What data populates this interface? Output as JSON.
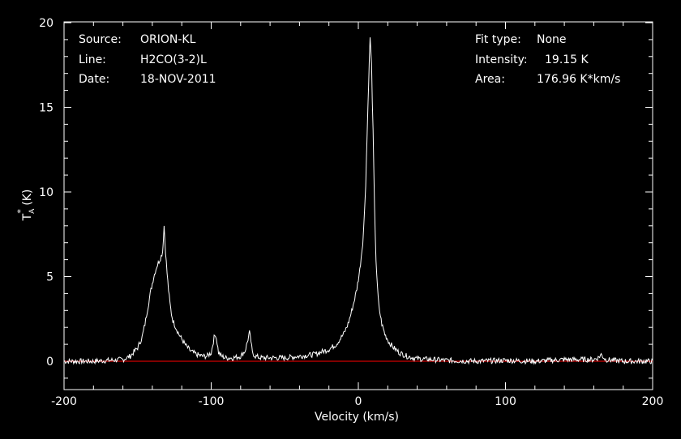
{
  "info": {
    "source_label": "Source:",
    "source_value": "ORION-KL",
    "line_label": "Line:",
    "line_value": "H2CO(3-2)L",
    "date_label": "Date:",
    "date_value": "18-NOV-2011",
    "fit_type_label": "Fit type:",
    "fit_type_value": "None",
    "intensity_label": "Intensity:",
    "intensity_value": "19.15 K",
    "area_label": "Area:",
    "area_value": "176.96 K*km/s"
  },
  "chart_data": {
    "type": "line",
    "xlabel": "Velocity (km/s)",
    "ylabel_main": "T",
    "ylabel_sub": "A",
    "ylabel_sup": "*",
    "ylabel_rest": " (K)",
    "xlim": [
      -200,
      200
    ],
    "ylim": [
      -1.5,
      20
    ],
    "xticks": [
      -200,
      -100,
      0,
      100,
      200
    ],
    "yticks": [
      0,
      5,
      10,
      15,
      20
    ],
    "xtick_labels": [
      "-200",
      "-100",
      "0",
      "100",
      "200"
    ],
    "ytick_labels": [
      "0",
      "5",
      "10",
      "15",
      "20"
    ],
    "baseline": 0,
    "colors": {
      "spectrum": "#ffffff",
      "baseline": "#ff0000",
      "axes": "#ffffff",
      "background": "#000000"
    },
    "series": [
      {
        "x": [
          -200,
          -190,
          -180,
          -170,
          -160,
          -155,
          -150,
          -147,
          -145,
          -143,
          -141,
          -139,
          -137,
          -135,
          -134,
          -133,
          -132,
          -131,
          -130,
          -129,
          -128,
          -127,
          -126,
          -124,
          -122,
          -120,
          -117,
          -114,
          -110,
          -106,
          -103,
          -100,
          -98,
          -97,
          -96,
          -95,
          -93,
          -90,
          -85,
          -80,
          -77,
          -75,
          -74,
          -73,
          -72,
          -70,
          -66,
          -60,
          -50,
          -40,
          -30,
          -20,
          -15,
          -10,
          -7,
          -5,
          -3,
          -1,
          1,
          3,
          4,
          5,
          6,
          7,
          8,
          9,
          10,
          11,
          12,
          13,
          14,
          16,
          18,
          21,
          24,
          28,
          33,
          40,
          50,
          60,
          80,
          100,
          120,
          140,
          160,
          163,
          165,
          168,
          180,
          200
        ],
        "y": [
          0.0,
          0.0,
          0.0,
          0.05,
          0.1,
          0.3,
          0.8,
          1.4,
          2.2,
          3.2,
          4.2,
          5.0,
          5.6,
          6.0,
          6.2,
          6.5,
          8.0,
          6.5,
          5.2,
          4.2,
          3.4,
          2.8,
          2.4,
          2.0,
          1.6,
          1.3,
          0.9,
          0.6,
          0.4,
          0.3,
          0.3,
          0.5,
          1.4,
          1.6,
          1.1,
          0.5,
          0.3,
          0.2,
          0.2,
          0.3,
          0.6,
          1.3,
          1.7,
          1.2,
          0.5,
          0.3,
          0.2,
          0.2,
          0.2,
          0.3,
          0.4,
          0.7,
          1.0,
          1.6,
          2.2,
          2.8,
          3.5,
          4.3,
          5.4,
          7.0,
          8.5,
          10.5,
          13.5,
          16.5,
          19.15,
          17.5,
          13.5,
          9.0,
          6.0,
          4.3,
          3.2,
          2.2,
          1.6,
          1.1,
          0.8,
          0.5,
          0.3,
          0.15,
          0.1,
          0.05,
          0.0,
          0.05,
          0.0,
          0.1,
          0.1,
          0.2,
          0.4,
          0.1,
          0.0,
          0.0
        ]
      }
    ]
  }
}
